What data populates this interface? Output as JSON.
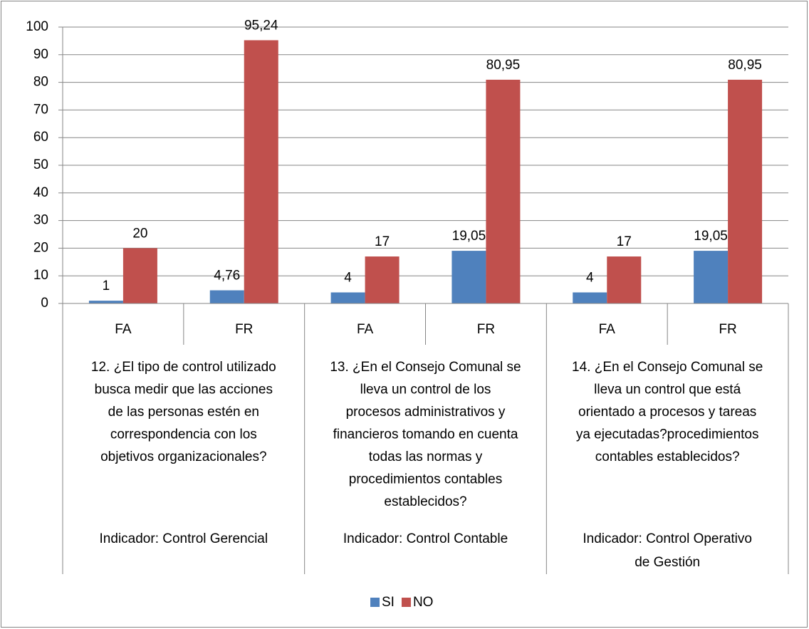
{
  "chart_data": {
    "type": "bar",
    "categories": [
      "FA",
      "FR",
      "FA",
      "FR",
      "FA",
      "FR"
    ],
    "groups": [
      {
        "question": [
          "12. ¿El tipo de control utilizado",
          "busca medir que las acciones",
          "de las personas estén en",
          "correspondencia con los",
          "objetivos organizacionales?"
        ],
        "indicator": [
          "Indicador: Control Gerencial"
        ]
      },
      {
        "question": [
          "13. ¿En el Consejo Comunal se",
          "lleva un control de los",
          "procesos administrativos y",
          "financieros tomando en cuenta",
          "todas las normas y",
          "procedimientos contables",
          "establecidos?"
        ],
        "indicator": [
          "Indicador: Control Contable"
        ]
      },
      {
        "question": [
          "14. ¿En el Consejo Comunal se",
          "lleva un control que está",
          "orientado a procesos y tareas",
          "ya ejecutadas?procedimientos",
          "contables establecidos?"
        ],
        "indicator": [
          "Indicador: Control Operativo",
          "de Gestión"
        ]
      }
    ],
    "series": [
      {
        "name": "SI",
        "color": "#4f81bd",
        "values": [
          1,
          4.76,
          4,
          19.05,
          4,
          19.05
        ],
        "value_labels": [
          "1",
          "4,76",
          "4",
          "19,05",
          "4",
          "19,05"
        ]
      },
      {
        "name": "NO",
        "color": "#c0504d",
        "values": [
          20,
          95.24,
          17,
          80.95,
          17,
          80.95
        ],
        "value_labels": [
          "20",
          "95,24",
          "17",
          "80,95",
          "17",
          "80,95"
        ]
      }
    ],
    "ylim": [
      0,
      100
    ],
    "yticks": [
      0,
      10,
      20,
      30,
      40,
      50,
      60,
      70,
      80,
      90,
      100
    ],
    "grid": true,
    "legend": "bottom"
  }
}
